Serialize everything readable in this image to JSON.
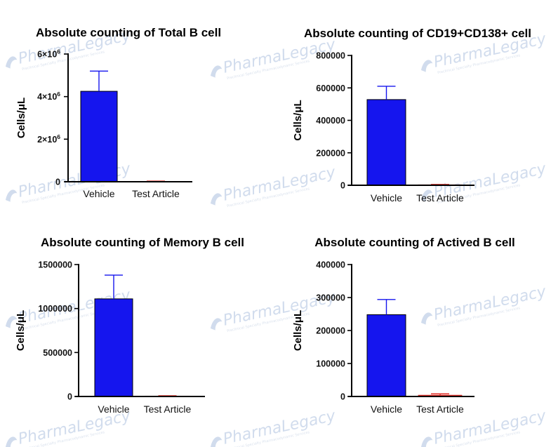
{
  "watermark": {
    "brand": "PharmaLegacy",
    "tagline": "Preclinical Specialty Pharmacodynamic Services",
    "color": "#c9d6ea"
  },
  "colors": {
    "vehicle": "#1515ee",
    "vehicle_border": "#000000",
    "test_article": "#e0302a"
  },
  "chart_data": [
    {
      "type": "bar",
      "title": "Absolute counting of Total B cell",
      "ylabel": "Cells/μL",
      "categories": [
        "Vehicle",
        "Test Article"
      ],
      "values": [
        4250000,
        20000
      ],
      "errors": [
        950000,
        10000
      ],
      "ylim": [
        0,
        6000000
      ],
      "yticks": [
        0,
        2000000,
        4000000,
        6000000
      ],
      "ytick_labels": [
        "0",
        "2×10",
        "4×10",
        "6×10"
      ],
      "ytick_exponents": [
        "",
        "6",
        "6",
        "6"
      ]
    },
    {
      "type": "bar",
      "title": "Absolute counting of CD19+CD138+ cell",
      "ylabel": "Cells/μL",
      "categories": [
        "Vehicle",
        "Test Article"
      ],
      "values": [
        528000,
        3000
      ],
      "errors": [
        82000,
        2000
      ],
      "ylim": [
        0,
        800000
      ],
      "yticks": [
        0,
        200000,
        400000,
        600000,
        800000
      ],
      "ytick_labels": [
        "0",
        "200000",
        "400000",
        "600000",
        "800000"
      ]
    },
    {
      "type": "bar",
      "title": "Absolute counting of Memory B cell",
      "ylabel": "Cells/μL",
      "categories": [
        "Vehicle",
        "Test Article"
      ],
      "values": [
        1110000,
        5000
      ],
      "errors": [
        270000,
        3000
      ],
      "ylim": [
        0,
        1500000
      ],
      "yticks": [
        0,
        500000,
        1000000,
        1500000
      ],
      "ytick_labels": [
        "0",
        "500000",
        "1000000",
        "1500000"
      ]
    },
    {
      "type": "bar",
      "title": "Absolute counting of Actived B cell",
      "ylabel": "Cells/μL",
      "categories": [
        "Vehicle",
        "Test Article"
      ],
      "values": [
        248000,
        4000
      ],
      "errors": [
        46000,
        4000
      ],
      "ylim": [
        0,
        400000
      ],
      "yticks": [
        0,
        100000,
        200000,
        300000,
        400000
      ],
      "ytick_labels": [
        "0",
        "100000",
        "200000",
        "300000",
        "400000"
      ]
    }
  ]
}
